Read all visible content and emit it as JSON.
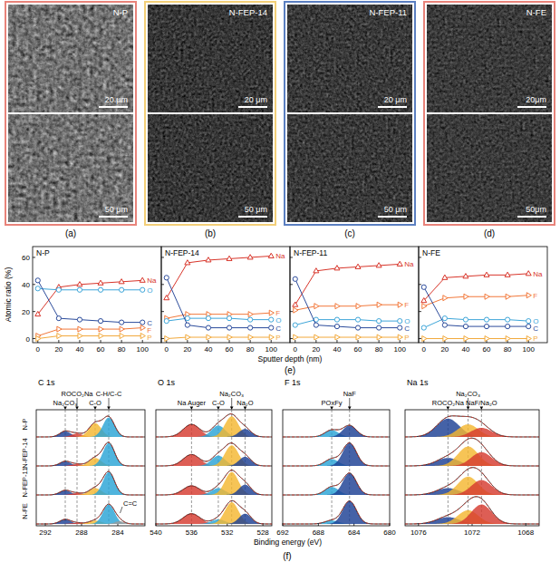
{
  "sem_panels": [
    {
      "label": "(a)",
      "sample": "N-P",
      "color": "#e8837a",
      "scale_bars": [
        "20 μm",
        "50 μm"
      ]
    },
    {
      "label": "(b)",
      "sample": "N-FEP-14",
      "color": "#f3cf78",
      "scale_bars": [
        "20 μm",
        "50 μm"
      ]
    },
    {
      "label": "(c)",
      "sample": "N-FEP-11",
      "color": "#5b7fc0",
      "scale_bars": [
        "20 μm",
        "50 μm"
      ]
    },
    {
      "label": "(d)",
      "sample": "N-FE",
      "color": "#e8837a",
      "scale_bars": [
        "20μm",
        "50μm"
      ]
    }
  ],
  "panel_labels": {
    "e": "(e)",
    "f": "(f)"
  },
  "chart_data": [
    {
      "type": "line",
      "title": "N-P",
      "ylabel": "Atomic ratio (%)",
      "xlabel": "Sputter depth (nm)",
      "x": [
        0,
        20,
        40,
        60,
        80,
        100
      ],
      "xlim": [
        -5,
        118
      ],
      "xticks": [
        0,
        20,
        40,
        60,
        80,
        100
      ],
      "ylim": [
        -3,
        68
      ],
      "yticks": [
        0,
        20,
        40,
        60
      ],
      "series": [
        {
          "name": "Na",
          "color": "#d8352a",
          "marker": "triangle",
          "values": [
            18,
            38,
            40,
            41,
            42,
            43
          ]
        },
        {
          "name": "O",
          "color": "#3ea6d9",
          "marker": "circle",
          "values": [
            37,
            36,
            36,
            36,
            36,
            36
          ]
        },
        {
          "name": "C",
          "color": "#2b4b9b",
          "marker": "circle",
          "values": [
            43,
            15,
            14,
            13,
            12,
            12
          ]
        },
        {
          "name": "F",
          "color": "#f2783a",
          "marker": "triangle-right",
          "values": [
            2,
            7,
            7,
            7,
            7,
            8
          ]
        },
        {
          "name": "P",
          "color": "#f2a93b",
          "marker": "triangle-right",
          "values": [
            0,
            2,
            2,
            2,
            2,
            2
          ]
        }
      ]
    },
    {
      "type": "line",
      "title": "N-FEP-14",
      "tick_labels": "x",
      "x": [
        0,
        20,
        40,
        60,
        80,
        100
      ],
      "xlim": [
        -5,
        118
      ],
      "xticks": [
        0,
        20,
        40,
        60,
        80,
        100
      ],
      "ylim": [
        -3,
        68
      ],
      "yticks": [
        0,
        20,
        40,
        60
      ],
      "series": [
        {
          "name": "Na",
          "color": "#d8352a",
          "marker": "triangle",
          "values": [
            30,
            56,
            58,
            59,
            60,
            61
          ]
        },
        {
          "name": "F",
          "color": "#f2783a",
          "marker": "triangle-right",
          "values": [
            15,
            18,
            18,
            18,
            18,
            19
          ]
        },
        {
          "name": "O",
          "color": "#3ea6d9",
          "marker": "circle",
          "values": [
            13,
            15,
            15,
            15,
            14,
            14
          ]
        },
        {
          "name": "C",
          "color": "#2b4b9b",
          "marker": "circle",
          "values": [
            45,
            10,
            8,
            8,
            8,
            8
          ]
        },
        {
          "name": "P",
          "color": "#f2a93b",
          "marker": "triangle-right",
          "values": [
            0,
            1,
            1,
            1,
            1,
            1
          ]
        }
      ]
    },
    {
      "type": "line",
      "title": "N-FEP-11",
      "tick_labels": "x",
      "x": [
        0,
        20,
        40,
        60,
        80,
        100
      ],
      "xlim": [
        -5,
        118
      ],
      "xticks": [
        0,
        20,
        40,
        60,
        80,
        100
      ],
      "ylim": [
        -3,
        68
      ],
      "yticks": [
        0,
        20,
        40,
        60
      ],
      "series": [
        {
          "name": "Na",
          "color": "#d8352a",
          "marker": "triangle",
          "values": [
            25,
            50,
            52,
            53,
            54,
            55
          ]
        },
        {
          "name": "F",
          "color": "#f2783a",
          "marker": "triangle-right",
          "values": [
            21,
            24,
            24,
            24,
            25,
            25
          ]
        },
        {
          "name": "O",
          "color": "#3ea6d9",
          "marker": "circle",
          "values": [
            10,
            14,
            14,
            14,
            13,
            13
          ]
        },
        {
          "name": "C",
          "color": "#2b4b9b",
          "marker": "circle",
          "values": [
            44,
            10,
            9,
            8,
            8,
            8
          ]
        },
        {
          "name": "P",
          "color": "#f2a93b",
          "marker": "triangle-right",
          "values": [
            1,
            1,
            1,
            1,
            1,
            1
          ]
        }
      ]
    },
    {
      "type": "line",
      "title": "N-FE",
      "tick_labels": "x",
      "x": [
        0,
        20,
        40,
        60,
        80,
        100
      ],
      "xlim": [
        -5,
        118
      ],
      "xticks": [
        0,
        20,
        40,
        60,
        80,
        100
      ],
      "ylim": [
        -3,
        68
      ],
      "yticks": [
        0,
        20,
        40,
        60
      ],
      "series": [
        {
          "name": "Na",
          "color": "#d8352a",
          "marker": "triangle",
          "values": [
            28,
            45,
            46,
            47,
            47,
            48
          ]
        },
        {
          "name": "F",
          "color": "#f2783a",
          "marker": "triangle-right",
          "values": [
            24,
            30,
            31,
            31,
            31,
            32
          ]
        },
        {
          "name": "O",
          "color": "#3ea6d9",
          "marker": "circle",
          "values": [
            8,
            15,
            14,
            14,
            14,
            13
          ]
        },
        {
          "name": "C",
          "color": "#2b4b9b",
          "marker": "circle",
          "values": [
            38,
            10,
            9,
            9,
            9,
            9
          ]
        },
        {
          "name": "P",
          "color": "#f2a93b",
          "marker": "triangle-right",
          "values": [
            0,
            0,
            0,
            0,
            0,
            0
          ]
        }
      ]
    },
    {
      "type": "peak_fit",
      "xlabel": "Binding energy (eV)",
      "ylim": [
        0,
        1.15
      ],
      "tick_labels": "x",
      "rows": [
        "N-P",
        "N-FEP-14",
        "N-FEP-11",
        "N-FE"
      ],
      "columns": [
        {
          "title": "C 1s",
          "xlim": [
            293,
            281
          ],
          "xticks": [
            292,
            288,
            284
          ],
          "components": [
            {
              "name": "Na₂CO₃",
              "color": "#1c3f94",
              "center": 289.8
            },
            {
              "name": "ROCO₂Na",
              "color": "#d63a2f",
              "center": 288.5
            },
            {
              "name": "C-O",
              "color": "#f4b731",
              "center": 286.5
            },
            {
              "name": "C-H/C-C",
              "color": "#2aa4d5",
              "center": 285.0
            },
            {
              "name": "C=C",
              "color": "#9a9a9a",
              "center": 283.8
            }
          ]
        },
        {
          "title": "O 1s",
          "xlim": [
            540,
            527
          ],
          "xticks": [
            540,
            536,
            532,
            528
          ],
          "components": [
            {
              "name": "Na Auger",
              "color": "#d63a2f",
              "center": 536.0
            },
            {
              "name": "C-O",
              "color": "#2aa4d5",
              "center": 533.0
            },
            {
              "name": "Na₂CO₃",
              "color": "#f4b731",
              "center": 531.5
            },
            {
              "name": "Na₂O",
              "color": "#1c3f94",
              "center": 530.0
            }
          ]
        },
        {
          "title": "F 1s",
          "xlim": [
            692,
            680
          ],
          "xticks": [
            692,
            688,
            684,
            680
          ],
          "components": [
            {
              "name": "POxFy",
              "color": "#2aa4d5",
              "center": 686.5
            },
            {
              "name": "NaF",
              "color": "#1c3f94",
              "center": 684.5
            }
          ]
        },
        {
          "title": "Na 1s",
          "xlim": [
            1077,
            1067
          ],
          "xticks": [
            1076,
            1072,
            1068
          ],
          "components": [
            {
              "name": "ROCO₂Na",
              "color": "#1c3f94",
              "center": 1073.8
            },
            {
              "name": "Na₂CO₃",
              "color": "#f4b731",
              "center": 1072.3
            },
            {
              "name": "NaF/Na₂O",
              "color": "#d63a2f",
              "center": 1071.3
            }
          ]
        }
      ],
      "cells": [
        [
          {
            "heights": [
              0.25,
              0.15,
              0.6,
              0.85,
              null
            ],
            "fwhm": [
              1.4,
              1.4,
              1.6,
              1.5,
              null
            ]
          },
          {
            "heights": [
              0.55,
              0.5,
              0.9,
              0.35
            ],
            "fwhm": [
              2.2,
              1.8,
              1.8,
              1.6
            ]
          },
          {
            "heights": [
              0.3,
              0.5
            ],
            "fwhm": [
              1.8,
              1.8
            ]
          },
          {
            "heights": [
              0.8,
              0.55,
              0.4
            ],
            "fwhm": [
              2.0,
              1.8,
              1.8
            ]
          }
        ],
        [
          {
            "heights": [
              0.2,
              0.08,
              0.35,
              1.0,
              null
            ],
            "fwhm": [
              1.4,
              1.4,
              1.6,
              1.5,
              null
            ]
          },
          {
            "heights": [
              0.5,
              0.45,
              0.9,
              0.4
            ],
            "fwhm": [
              2.2,
              1.8,
              1.8,
              1.6
            ]
          },
          {
            "heights": [
              0.3,
              1.0
            ],
            "fwhm": [
              1.8,
              1.8
            ]
          },
          {
            "heights": [
              0.35,
              0.85,
              0.6
            ],
            "fwhm": [
              2.0,
              1.8,
              1.8
            ]
          }
        ],
        [
          {
            "heights": [
              0.2,
              0.08,
              0.3,
              1.0,
              null
            ],
            "fwhm": [
              1.4,
              1.4,
              1.6,
              1.5,
              null
            ]
          },
          {
            "heights": [
              0.4,
              0.3,
              1.0,
              0.45
            ],
            "fwhm": [
              2.2,
              1.8,
              1.8,
              1.6
            ]
          },
          {
            "heights": [
              0.35,
              0.95
            ],
            "fwhm": [
              1.8,
              1.8
            ]
          },
          {
            "heights": [
              0.3,
              0.8,
              0.65
            ],
            "fwhm": [
              2.0,
              1.8,
              1.8
            ]
          }
        ],
        [
          {
            "heights": [
              0.2,
              0.05,
              0.15,
              0.85,
              0.12
            ],
            "fwhm": [
              1.4,
              1.4,
              1.6,
              1.5,
              1.2
            ]
          },
          {
            "heights": [
              0.45,
              0.2,
              0.95,
              0.45
            ],
            "fwhm": [
              2.2,
              1.8,
              1.8,
              1.6
            ]
          },
          {
            "heights": [
              0.15,
              1.0
            ],
            "fwhm": [
              1.8,
              1.8
            ]
          },
          {
            "heights": [
              0.3,
              0.6,
              0.85
            ],
            "fwhm": [
              2.0,
              1.8,
              1.8
            ]
          }
        ]
      ]
    }
  ]
}
